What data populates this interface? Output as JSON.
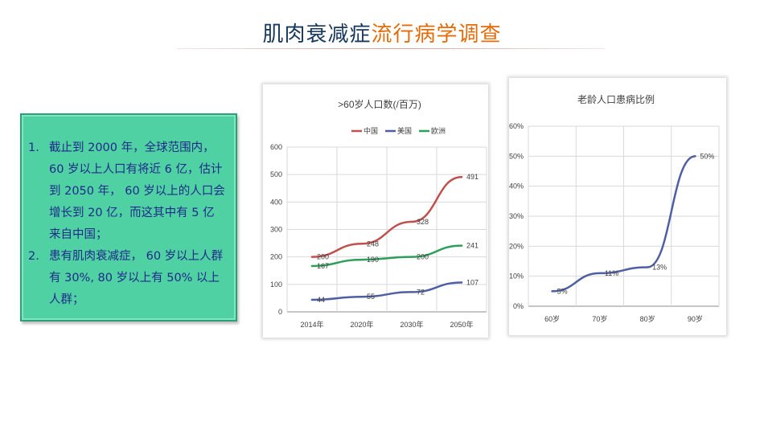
{
  "title": {
    "part1": "肌肉衰减症",
    "part2": "流行病学调查"
  },
  "textbox": {
    "items": [
      {
        "num": "1.",
        "text": "截止到 2000 年，全球范围内，60 岁以上人口有将近 6 亿，估计到 2050 年， 60 岁以上的人口会增长到 20 亿，而这其中有 5 亿来自中国；"
      },
      {
        "num": "2.",
        "text": "患有肌肉衰减症， 60 岁以上人群有 30%, 80 岁以上有 50% 以上人群；"
      }
    ]
  },
  "colors": {
    "china": "#c0504d",
    "usa": "#4f5fa3",
    "europe": "#2e9e5b",
    "ratio": "#4f5fa3"
  },
  "chart_data": [
    {
      "type": "line",
      "title": ">60岁人口数(/百万)",
      "categories": [
        "2014年",
        "2020年",
        "2030年",
        "2050年"
      ],
      "series": [
        {
          "name": "中国",
          "values": [
            200,
            248,
            328,
            491
          ]
        },
        {
          "name": "美国",
          "values": [
            44,
            55,
            72,
            107
          ]
        },
        {
          "name": "欧洲",
          "values": [
            167,
            190,
            200,
            241
          ]
        }
      ],
      "ylim": [
        0,
        600
      ],
      "yticks": [
        "0",
        "100",
        "200",
        "300",
        "400",
        "500",
        "600"
      ],
      "legend": "top",
      "grid": true
    },
    {
      "type": "line",
      "title": "老龄人口患病比例",
      "categories": [
        "60岁",
        "70岁",
        "80岁",
        "90岁"
      ],
      "series": [
        {
          "values": [
            5,
            11,
            13,
            50
          ],
          "labels": [
            "5%",
            "11%",
            "13%",
            "50%"
          ]
        }
      ],
      "ylim": [
        0,
        60
      ],
      "yticks": [
        "0%",
        "10%",
        "20%",
        "30%",
        "40%",
        "50%",
        "60%"
      ],
      "grid": true
    }
  ]
}
